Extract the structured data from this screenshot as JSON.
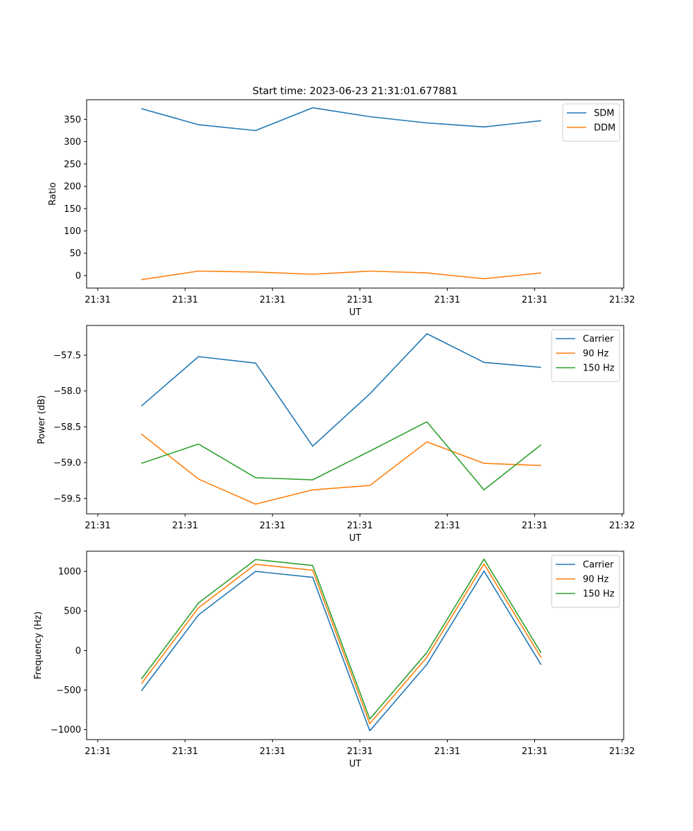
{
  "figure_title": "Start time: 2023-06-23 21:31:01.677881",
  "colors": {
    "blue": "#1f77b4",
    "orange": "#ff7f0e",
    "green": "#2ca02c"
  },
  "chart_data": [
    {
      "type": "line",
      "title": "Start time: 2023-06-23 21:31:01.677881",
      "xlabel": "UT",
      "ylabel": "Ratio",
      "x_tick_labels": [
        "21:31",
        "21:31",
        "21:31",
        "21:31",
        "21:31",
        "21:31",
        "21:31"
      ],
      "x_tick_last_label": "21:32",
      "ylim": [
        -28,
        394
      ],
      "y_ticks": [
        0,
        50,
        100,
        150,
        200,
        250,
        300,
        350
      ],
      "legend_position": "top-right",
      "grid": false,
      "series": [
        {
          "name": "SDM",
          "color": "#1f77b4",
          "values": [
            374,
            338,
            325,
            376,
            356,
            342,
            333,
            347
          ]
        },
        {
          "name": "DDM",
          "color": "#ff7f0e",
          "values": [
            -9,
            10,
            8,
            3,
            10,
            6,
            -7,
            6
          ]
        }
      ]
    },
    {
      "type": "line",
      "title": "",
      "xlabel": "UT",
      "ylabel": "Power (dB)",
      "x_tick_labels": [
        "21:31",
        "21:31",
        "21:31",
        "21:31",
        "21:31",
        "21:31",
        "21:31"
      ],
      "x_tick_last_label": "21:32",
      "ylim": [
        -59.715,
        -57.085
      ],
      "y_ticks": [
        -59.5,
        -59.0,
        -58.5,
        -58.0,
        -57.5
      ],
      "y_tick_labels": [
        "−59.5",
        "−59.0",
        "−58.5",
        "−58.0",
        "−57.5"
      ],
      "legend_position": "top-right",
      "grid": false,
      "series": [
        {
          "name": "Carrier",
          "color": "#1f77b4",
          "values": [
            -58.21,
            -57.52,
            -57.61,
            -58.77,
            -58.04,
            -57.2,
            -57.6,
            -57.67
          ]
        },
        {
          "name": "90 Hz",
          "color": "#ff7f0e",
          "values": [
            -58.6,
            -59.23,
            -59.58,
            -59.38,
            -59.32,
            -58.71,
            -59.01,
            -59.04
          ]
        },
        {
          "name": "150 Hz",
          "color": "#2ca02c",
          "values": [
            -59.01,
            -58.74,
            -59.21,
            -59.24,
            -58.84,
            -58.43,
            -59.38,
            -58.75
          ]
        }
      ]
    },
    {
      "type": "line",
      "title": "",
      "xlabel": "UT",
      "ylabel": "Frequency (Hz)",
      "x_tick_labels": [
        "21:31",
        "21:31",
        "21:31",
        "21:31",
        "21:31",
        "21:31",
        "21:31"
      ],
      "x_tick_last_label": "21:32",
      "ylim": [
        -1126,
        1255
      ],
      "y_ticks": [
        -1000,
        -500,
        0,
        500,
        1000
      ],
      "y_tick_labels": [
        "−1000",
        "−500",
        "0",
        "500",
        "1000"
      ],
      "legend_position": "top-right",
      "grid": false,
      "series": [
        {
          "name": "Carrier",
          "color": "#1f77b4",
          "values": [
            -510,
            450,
            1000,
            925,
            -1015,
            -175,
            1005,
            -180
          ]
        },
        {
          "name": "90 Hz",
          "color": "#ff7f0e",
          "values": [
            -420,
            540,
            1090,
            1015,
            -925,
            -85,
            1095,
            -90
          ]
        },
        {
          "name": "150 Hz",
          "color": "#2ca02c",
          "values": [
            -360,
            600,
            1150,
            1075,
            -865,
            -25,
            1155,
            -30
          ]
        }
      ]
    }
  ]
}
